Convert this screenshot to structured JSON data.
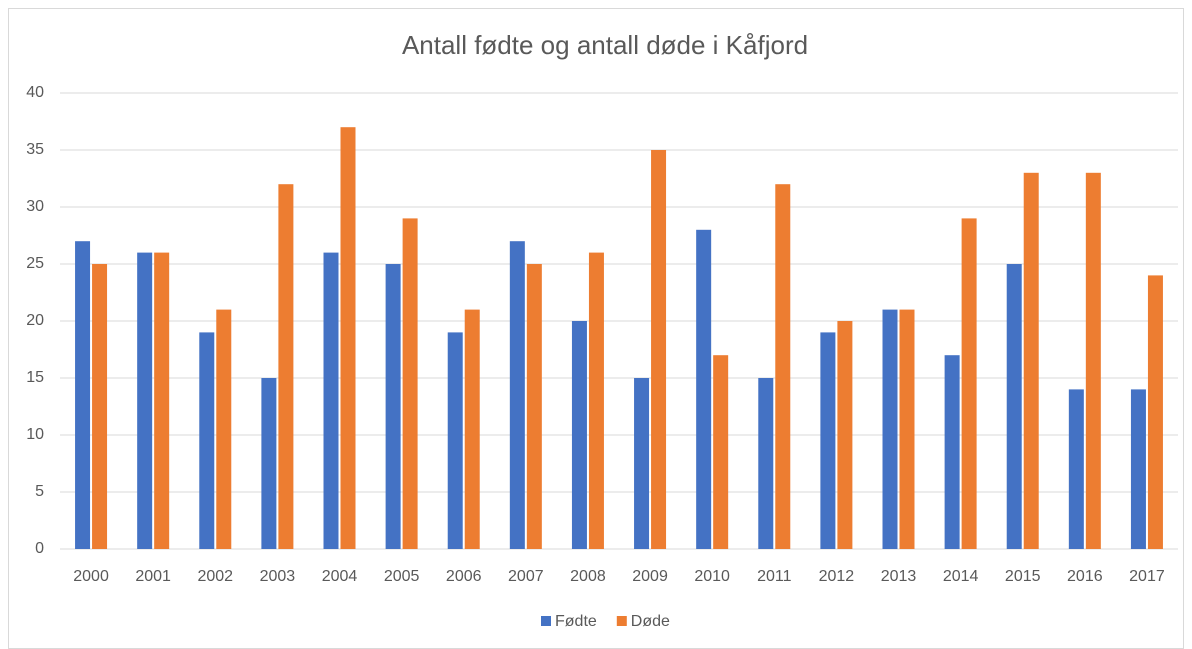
{
  "chart_data": {
    "type": "bar",
    "title": "Antall fødte og antall døde i Kåfjord",
    "categories": [
      "2000",
      "2001",
      "2002",
      "2003",
      "2004",
      "2005",
      "2006",
      "2007",
      "2008",
      "2009",
      "2010",
      "2011",
      "2012",
      "2013",
      "2014",
      "2015",
      "2016",
      "2017"
    ],
    "series": [
      {
        "name": "Fødte",
        "color": "#4472c4",
        "values": [
          27,
          26,
          19,
          15,
          26,
          25,
          19,
          27,
          20,
          15,
          28,
          15,
          19,
          21,
          17,
          25,
          14,
          14
        ]
      },
      {
        "name": "Døde",
        "color": "#ed7d31",
        "values": [
          25,
          26,
          21,
          32,
          37,
          29,
          21,
          25,
          26,
          35,
          17,
          32,
          20,
          21,
          29,
          33,
          33,
          24
        ]
      }
    ],
    "ylim": [
      0,
      40
    ],
    "yticks": [
      0,
      5,
      10,
      15,
      20,
      25,
      30,
      35,
      40
    ],
    "grid": true,
    "legend": "bottom"
  }
}
